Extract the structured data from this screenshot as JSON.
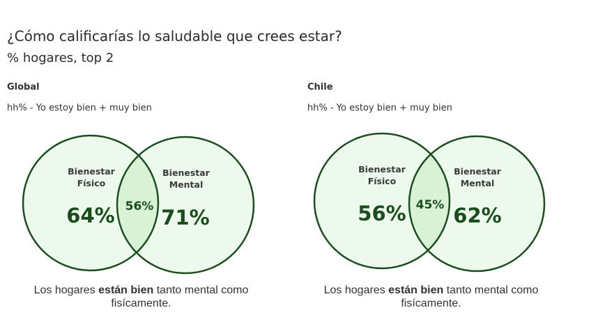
{
  "page": {
    "title": "¿Cómo calificarías lo saludable que crees estar?",
    "subtitle": "% hogares, top 2"
  },
  "chart_data": [
    {
      "type": "venn",
      "name": "Global",
      "subtitle": "hh% - Yo estoy bien + muy bien",
      "sets": [
        {
          "label_line1": "Bienestar",
          "label_line2": "Físico",
          "value": 64,
          "value_label": "64%"
        },
        {
          "label_line1": "Bienestar",
          "label_line2": "Mental",
          "value": 71,
          "value_label": "71%"
        }
      ],
      "intersection": {
        "value": 56,
        "value_label": "56%"
      },
      "caption_pre": "Los hogares ",
      "caption_bold": "están bien",
      "caption_post": " tanto mental como fisícamente.",
      "colors": {
        "outline": "#1b4d1f",
        "fill": "#edf9ec",
        "overlap": "#d9f2d6"
      }
    },
    {
      "type": "venn",
      "name": "Chile",
      "subtitle": "hh% - Yo estoy bien + muy bien",
      "sets": [
        {
          "label_line1": "Bienestar",
          "label_line2": "Físico",
          "value": 56,
          "value_label": "56%"
        },
        {
          "label_line1": "Bienestar",
          "label_line2": "Mental",
          "value": 62,
          "value_label": "62%"
        }
      ],
      "intersection": {
        "value": 45,
        "value_label": "45%"
      },
      "caption_pre": "Los hogares ",
      "caption_bold": "están bien",
      "caption_post": " tanto mental como fisícamente.",
      "colors": {
        "outline": "#1b4d1f",
        "fill": "#edf9ec",
        "overlap": "#d9f2d6"
      }
    }
  ]
}
